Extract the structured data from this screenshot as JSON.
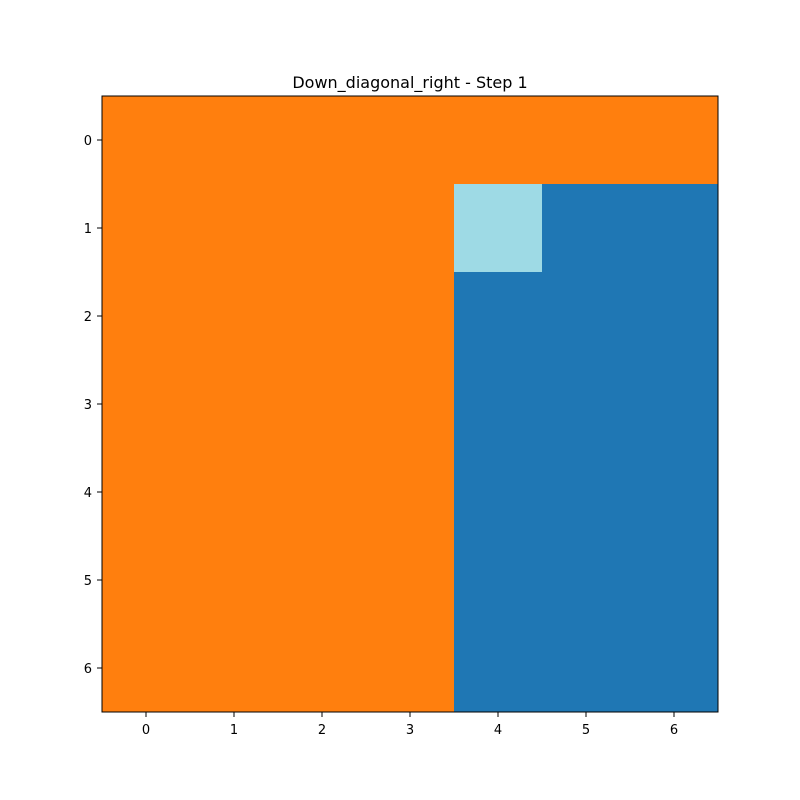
{
  "chart_data": {
    "type": "heatmap",
    "title": "Down_diagonal_right - Step 1",
    "xlabel": "",
    "ylabel": "",
    "x_ticks": [
      "0",
      "1",
      "2",
      "3",
      "4",
      "5",
      "6"
    ],
    "y_ticks": [
      "0",
      "1",
      "2",
      "3",
      "4",
      "5",
      "6"
    ],
    "xlim": [
      -0.5,
      6.5
    ],
    "ylim": [
      6.5,
      -0.5
    ],
    "y_axis_inverted": true,
    "grid": false,
    "colors": {
      "0": "#ff7f0e",
      "1": "#1f77b4",
      "2": "#9edae5"
    },
    "grid_values": [
      [
        0,
        0,
        0,
        0,
        0,
        0,
        0
      ],
      [
        0,
        0,
        0,
        0,
        2,
        1,
        1
      ],
      [
        0,
        0,
        0,
        0,
        1,
        1,
        1
      ],
      [
        0,
        0,
        0,
        0,
        1,
        1,
        1
      ],
      [
        0,
        0,
        0,
        0,
        1,
        1,
        1
      ],
      [
        0,
        0,
        0,
        0,
        1,
        1,
        1
      ],
      [
        0,
        0,
        0,
        0,
        1,
        1,
        1
      ]
    ]
  }
}
